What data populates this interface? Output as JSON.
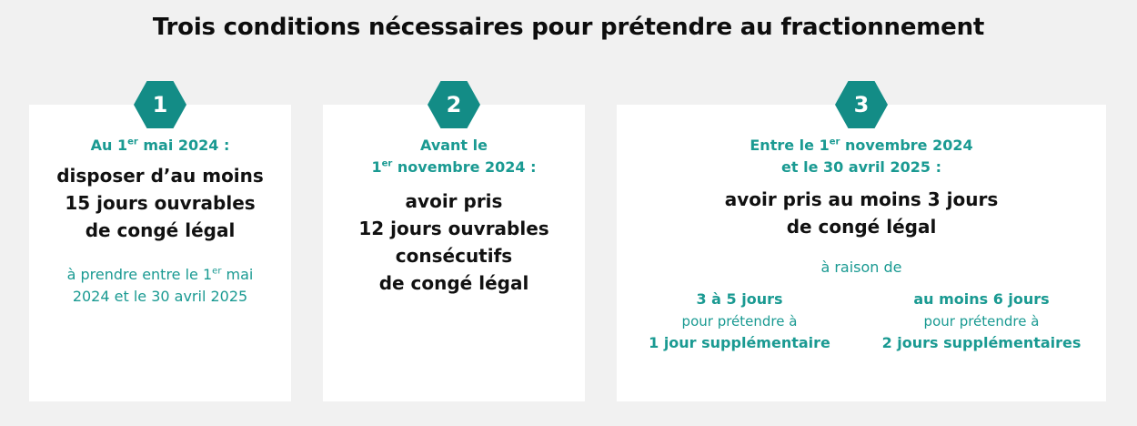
{
  "title": "Trois conditions nécessaires pour prétendre au fractionnement",
  "colors": {
    "accent": "#138c86",
    "accent_text": "#1a9a92",
    "background": "#f1f1f1",
    "card": "#ffffff"
  },
  "cards": [
    {
      "number": "1",
      "header_a": "Au 1",
      "header_a_sup": "er",
      "header_a_rest": " mai 2024 :",
      "main": [
        "disposer d’au moins",
        "15 jours ouvrables",
        "de congé légal"
      ],
      "note_a": "à prendre entre le 1",
      "note_a_sup": "er",
      "note_a_rest": " mai",
      "note_b": "2024 et le 30 avril 2025"
    },
    {
      "number": "2",
      "header_line1": "Avant le",
      "header_b": "1",
      "header_b_sup": "er",
      "header_b_rest": " novembre 2024 :",
      "main": [
        "avoir pris",
        "12 jours ouvrables",
        "consécutifs",
        "de congé légal"
      ]
    },
    {
      "number": "3",
      "header_a": "Entre le 1",
      "header_a_sup": "er",
      "header_a_rest": " novembre 2024",
      "header_line2": "et le 30 avril 2025 :",
      "main": [
        "avoir pris au moins 3 jours",
        "de congé légal"
      ],
      "raison": "à raison de",
      "options": [
        {
          "bold": "3 à 5 jours",
          "text": "pour prétendre à",
          "result": "1 jour supplémentaire"
        },
        {
          "bold": "au moins 6 jours",
          "text": "pour prétendre à",
          "result": "2 jours supplémentaires"
        }
      ]
    }
  ]
}
